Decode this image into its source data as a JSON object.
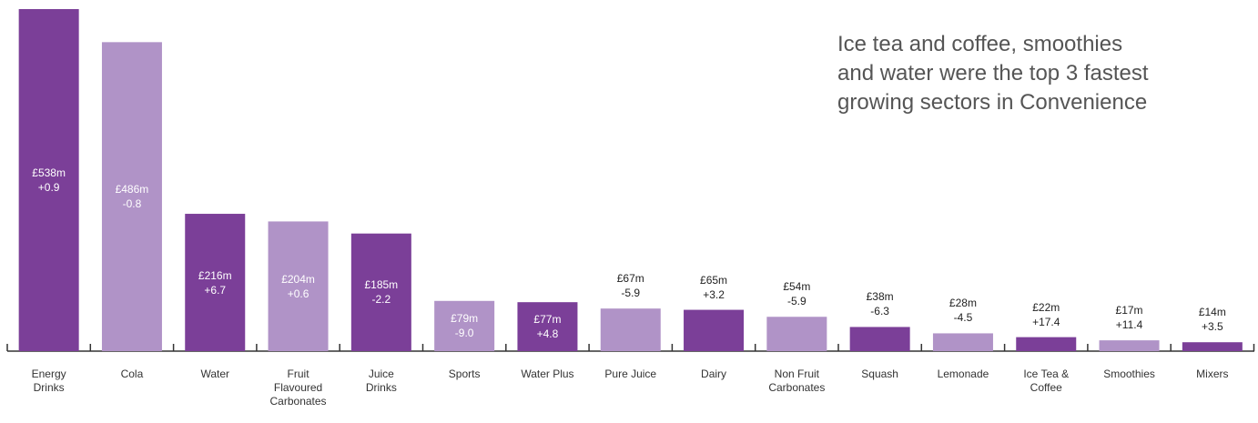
{
  "chart_data": {
    "type": "bar",
    "annotation": "Ice tea and coffee, smoothies\nand water were the top 3 fastest\ngrowing sectors in Convenience",
    "categories": [
      "Energy\nDrinks",
      "Cola",
      "Water",
      "Fruit\nFlavoured\nCarbonates",
      "Juice\nDrinks",
      "Sports",
      "Water Plus",
      "Pure Juice",
      "Dairy",
      "Non Fruit\nCarbonates",
      "Squash",
      "Lemonade",
      "Ice Tea &\nCoffee",
      "Smoothies",
      "Mixers"
    ],
    "values": [
      538,
      486,
      216,
      204,
      185,
      79,
      77,
      67,
      65,
      54,
      38,
      28,
      22,
      17,
      14
    ],
    "value_labels": [
      "£538m",
      "£486m",
      "£216m",
      "£204m",
      "£185m",
      "£79m",
      "£77m",
      "£67m",
      "£65m",
      "£54m",
      "£38m",
      "£28m",
      "£22m",
      "£17m",
      "£14m"
    ],
    "changes": [
      0.9,
      -0.8,
      6.7,
      0.6,
      -2.2,
      -9.0,
      4.8,
      -5.9,
      3.2,
      -5.9,
      -6.3,
      -4.5,
      17.4,
      11.4,
      3.5
    ],
    "change_labels": [
      "+0.9",
      "-0.8",
      "+6.7",
      "+0.6",
      "-2.2",
      "-9.0",
      "+4.8",
      "-5.9",
      "+3.2",
      "-5.9",
      "-6.3",
      "-4.5",
      "+17.4",
      "+11.4",
      "+3.5"
    ],
    "colors": [
      "#7b3f98",
      "#b093c7",
      "#7b3f98",
      "#b093c7",
      "#7b3f98",
      "#b093c7",
      "#7b3f98",
      "#b093c7",
      "#7b3f98",
      "#b093c7",
      "#7b3f98",
      "#b093c7",
      "#7b3f98",
      "#b093c7",
      "#7b3f98"
    ]
  }
}
